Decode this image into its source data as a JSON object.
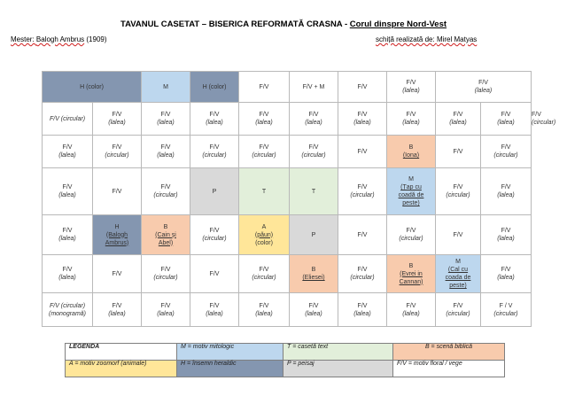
{
  "title": {
    "main": "TAVANUL CASETAT – BISERICA REFORMATĂ CRASNA - ",
    "underlined": "Corul dinspre Nord-Vest"
  },
  "meta": {
    "master_label": "Mester: ",
    "master_name": "Balogh Ambrus",
    "master_year": " (1909)",
    "sketch_label": "schiță realizată de: ",
    "sketch_author": "Mirel Matyas"
  },
  "grid": {
    "row1": [
      "H (color)",
      "M",
      "H (color)",
      "F/V",
      "F/V + M",
      "F/V",
      "F/V",
      "(lalea)",
      "F/V",
      "(lalea)"
    ],
    "row2": [
      "F/V (circular)",
      "F/V",
      "(lalea)",
      "F/V",
      "(lalea)",
      "F/V",
      "(lalea)",
      "F/V",
      "(lalea)",
      "F/V",
      "(lalea)",
      "F/V",
      "(lalea)",
      "F/V",
      "(lalea)",
      "F/V",
      "(lalea)",
      "F/V",
      "(lalea)",
      "F/V",
      "(circular)"
    ],
    "row3": [
      "F/V",
      "(lalea)",
      "F/V",
      "(circular)",
      "F/V",
      "(lalea)",
      "F/V",
      "(circular)",
      "F/V",
      "(circular)",
      "F/V",
      "(circular)",
      "F/V",
      "B",
      "(Iona)",
      "F/V",
      "F/V",
      "(circular)"
    ],
    "row4": [
      "F/V",
      "(lalea)",
      "F/V",
      "F/V",
      "(circular)",
      "P",
      "T",
      "T",
      "F/V",
      "(circular)",
      "M",
      "(Țap cu",
      "coadă de",
      "peste)",
      "F/V",
      "(circular)",
      "F/V",
      "(lalea)"
    ],
    "row5": [
      "F/V",
      "(lalea)",
      "H",
      "(Balogh",
      "Ambrus)",
      "B",
      "(Cain și",
      "Abel)",
      "F/V",
      "(circular)",
      "A",
      "(păun)",
      "(color)",
      "P",
      "F/V",
      "F/V",
      "(circular)",
      "F/V",
      "F/V",
      "(lalea)"
    ],
    "row6": [
      "F/V",
      "(lalea)",
      "F/V",
      "F/V",
      "(circular)",
      "F/V",
      "F/V",
      "(circular)",
      "B",
      "(Eliesei)",
      "F/V",
      "(circular)",
      "B",
      "(Evrei in",
      "Cannan)",
      "M",
      "(Cal cu",
      "coada de",
      "peste)",
      "F/V",
      "(lalea)"
    ],
    "row7": [
      "F/V (circular)",
      "(monogramă)",
      "F/V",
      "(lalea)",
      "F/V",
      "(lalea)",
      "F/V",
      "(lalea)",
      "F/V",
      "(lalea)",
      "F/V",
      "(lalea)",
      "F/V",
      "(lalea)",
      "F/V",
      "(lalea)",
      "F/V",
      "(circular)",
      "F / V",
      "(circular)"
    ]
  },
  "legend": {
    "title": "LEGENDA",
    "m": "M = motiv mitologic",
    "t": "T = casetă text",
    "b": "B = scenă biblică",
    "a": "A = motiv zoomorf (animale)",
    "h": "H =  însemn heraldic",
    "p": "P = peisaj",
    "fv": "F/V = motiv floral / vege"
  },
  "colors": {
    "heraldic": "#8496b0",
    "mythologic": "#bdd7ee",
    "biblical": "#f8cbad",
    "text": "#e2efda",
    "landscape": "#d9d9d9",
    "zoomorphic": "#ffe699"
  }
}
